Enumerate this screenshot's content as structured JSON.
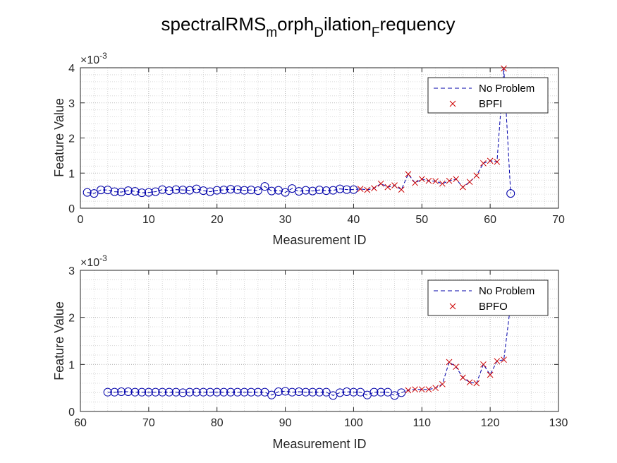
{
  "title": {
    "base": "spectralRMS",
    "sub1": "m",
    "part2": "orph",
    "sub2": "D",
    "part3": "ilation",
    "sub3": "F",
    "part4": "requency"
  },
  "chart_data": [
    {
      "type": "line",
      "xlabel": "Measurement ID",
      "ylabel": "Feature Value",
      "exponent_label": "×10",
      "exponent": "-3",
      "xlim": [
        0,
        70
      ],
      "ylim": [
        0,
        4
      ],
      "xticks": [
        "0",
        "10",
        "20",
        "30",
        "40",
        "50",
        "60",
        "70"
      ],
      "yticks": [
        "0",
        "1",
        "2",
        "3",
        "4"
      ],
      "grid": true,
      "minor_grid": true,
      "legend_position": "top-right",
      "colors": {
        "line": "#0000aa",
        "circle": "#0000aa",
        "cross": "#cc0000"
      },
      "series": [
        {
          "name": "No Problem",
          "marker": "o",
          "x": [
            1,
            2,
            3,
            4,
            5,
            6,
            7,
            8,
            9,
            10,
            11,
            12,
            13,
            14,
            15,
            16,
            17,
            18,
            19,
            20,
            21,
            22,
            23,
            24,
            25,
            26,
            27,
            28,
            29,
            30,
            31,
            32,
            33,
            34,
            35,
            36,
            37,
            38,
            39,
            40,
            63
          ],
          "y": [
            0.45,
            0.42,
            0.52,
            0.52,
            0.47,
            0.46,
            0.5,
            0.48,
            0.44,
            0.45,
            0.47,
            0.53,
            0.5,
            0.53,
            0.52,
            0.51,
            0.55,
            0.5,
            0.47,
            0.51,
            0.52,
            0.54,
            0.53,
            0.51,
            0.52,
            0.5,
            0.62,
            0.49,
            0.51,
            0.45,
            0.56,
            0.48,
            0.51,
            0.49,
            0.52,
            0.5,
            0.51,
            0.55,
            0.53,
            0.53,
            0.42
          ]
        },
        {
          "name": "BPFI",
          "marker": "x",
          "x": [
            41,
            42,
            43,
            44,
            45,
            46,
            47,
            48,
            49,
            50,
            51,
            52,
            53,
            54,
            55,
            56,
            57,
            58,
            59,
            60,
            61,
            62
          ],
          "y": [
            0.55,
            0.52,
            0.57,
            0.7,
            0.6,
            0.65,
            0.53,
            0.97,
            0.72,
            0.83,
            0.78,
            0.77,
            0.7,
            0.78,
            0.83,
            0.6,
            0.75,
            0.93,
            1.28,
            1.35,
            1.32,
            3.98
          ]
        }
      ]
    },
    {
      "type": "line",
      "xlabel": "Measurement ID",
      "ylabel": "Feature Value",
      "exponent_label": "×10",
      "exponent": "-3",
      "xlim": [
        60,
        130
      ],
      "ylim": [
        0,
        3
      ],
      "xticks": [
        "60",
        "70",
        "80",
        "90",
        "100",
        "110",
        "120",
        "130"
      ],
      "yticks": [
        "0",
        "1",
        "2",
        "3"
      ],
      "grid": true,
      "minor_grid": true,
      "legend_position": "top-right",
      "colors": {
        "line": "#0000aa",
        "circle": "#0000aa",
        "cross": "#cc0000"
      },
      "series": [
        {
          "name": "No Problem",
          "marker": "o",
          "x": [
            64,
            65,
            66,
            67,
            68,
            69,
            70,
            71,
            72,
            73,
            74,
            75,
            76,
            77,
            78,
            79,
            80,
            81,
            82,
            83,
            84,
            85,
            86,
            87,
            88,
            89,
            90,
            91,
            92,
            93,
            94,
            95,
            96,
            97,
            98,
            99,
            100,
            101,
            102,
            103,
            104,
            105,
            106,
            107
          ],
          "y": [
            0.41,
            0.41,
            0.42,
            0.42,
            0.41,
            0.41,
            0.41,
            0.41,
            0.41,
            0.41,
            0.41,
            0.4,
            0.41,
            0.41,
            0.41,
            0.41,
            0.41,
            0.41,
            0.41,
            0.41,
            0.41,
            0.41,
            0.41,
            0.41,
            0.35,
            0.42,
            0.43,
            0.41,
            0.42,
            0.41,
            0.41,
            0.41,
            0.41,
            0.34,
            0.4,
            0.42,
            0.41,
            0.41,
            0.35,
            0.41,
            0.41,
            0.41,
            0.34,
            0.4
          ]
        },
        {
          "name": "BPFO",
          "marker": "x",
          "x": [
            108,
            109,
            110,
            111,
            112,
            113,
            114,
            115,
            116,
            117,
            118,
            119,
            120,
            121,
            122,
            123
          ],
          "y": [
            0.45,
            0.47,
            0.47,
            0.47,
            0.5,
            0.58,
            1.05,
            0.95,
            0.72,
            0.62,
            0.6,
            1.0,
            0.78,
            1.07,
            1.1,
            2.28
          ]
        }
      ]
    }
  ]
}
